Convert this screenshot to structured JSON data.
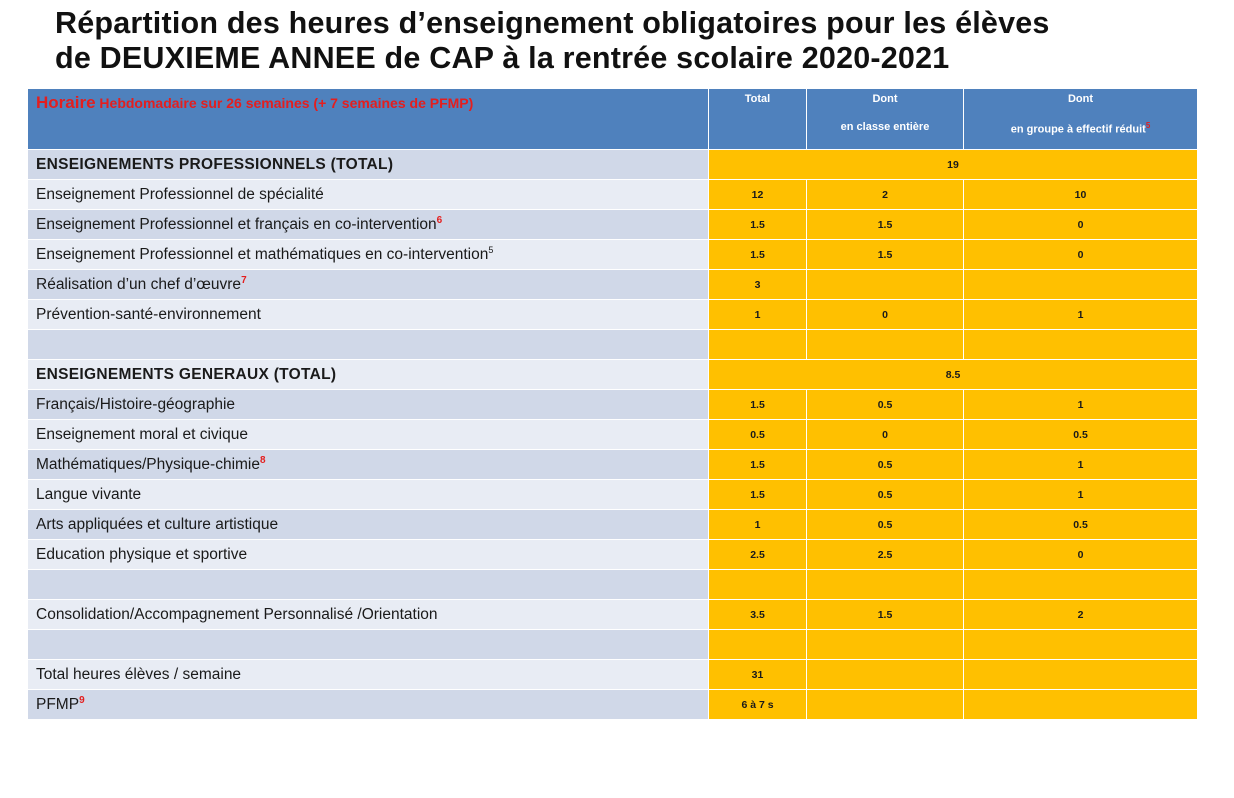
{
  "title": {
    "line1": "Répartition des heures d’enseignement obligatoires pour les élèves",
    "line2": "de DEUXIEME ANNEE de CAP à la rentrée scolaire 2020-2021"
  },
  "header": {
    "horaire_word": "Horaire",
    "horaire_rest": " Hebdomadaire sur 26 semaines (+ 7 semaines de PFMP)",
    "col_total": "Total",
    "col_dont1_line1": "Dont",
    "col_dont1_line2": "en classe entière",
    "col_dont2_line1": "Dont",
    "col_dont2_line2": "en groupe à effectif réduit",
    "col_dont2_note": "5"
  },
  "rows": [
    {
      "label": "ENSEIGNEMENTS PROFESSIONNELS (TOTAL)",
      "value": "19"
    },
    {
      "label": "Enseignement  Professionnel de spécialité",
      "note": "",
      "total": "12",
      "classe": "2",
      "groupe": "10"
    },
    {
      "label": "Enseignement  Professionnel et français en co-intervention",
      "note": "6",
      "total": "1.5",
      "classe": "1.5",
      "groupe": "0"
    },
    {
      "label": "Enseignement  Professionnel et mathématiques en co-intervention",
      "note": "5",
      "total": "1.5",
      "classe": "1.5",
      "groupe": "0"
    },
    {
      "label": "Réalisation d’un chef d’œuvre",
      "note": "7",
      "total": "3",
      "classe": "",
      "groupe": ""
    },
    {
      "label": "Prévention-santé-environnement",
      "note": "",
      "total": "1",
      "classe": "0",
      "groupe": "1"
    },
    {
      "label": "",
      "note": "",
      "total": "",
      "classe": "",
      "groupe": ""
    },
    {
      "label": "ENSEIGNEMENTS GENERAUX (TOTAL)",
      "value": "8.5"
    },
    {
      "label": "Français/Histoire-géographie",
      "note": "",
      "total": "1.5",
      "classe": "0.5",
      "groupe": "1"
    },
    {
      "label": "Enseignement  moral et civique",
      "note": "",
      "total": "0.5",
      "classe": "0",
      "groupe": "0.5"
    },
    {
      "label": "Mathématiques/Physique-chimie",
      "note": "8",
      "total": "1.5",
      "classe": "0.5",
      "groupe": "1"
    },
    {
      "label": "Langue  vivante",
      "note": "",
      "total": "1.5",
      "classe": "0.5",
      "groupe": "1"
    },
    {
      "label": "Arts appliquées   et culture artistique",
      "note": "",
      "total": "1",
      "classe": "0.5",
      "groupe": "0.5"
    },
    {
      "label": "Education  physique et sportive",
      "note": "",
      "total": "2.5",
      "classe": "2.5",
      "groupe": "0"
    },
    {
      "label": "",
      "note": "",
      "total": "",
      "classe": "",
      "groupe": ""
    },
    {
      "label": "Consolidation/Accompagnement  Personnalisé  /Orientation",
      "note": "",
      "total": "3.5",
      "classe": "1.5",
      "groupe": "2"
    },
    {
      "label": "",
      "note": "",
      "total": "",
      "classe": "",
      "groupe": ""
    },
    {
      "label": "Total heures élèves  / semaine",
      "note": "",
      "total": "31",
      "classe": "",
      "groupe": ""
    },
    {
      "label": "PFMP",
      "note": "9",
      "total": "6 à 7 s",
      "classe": "",
      "groupe": ""
    }
  ]
}
